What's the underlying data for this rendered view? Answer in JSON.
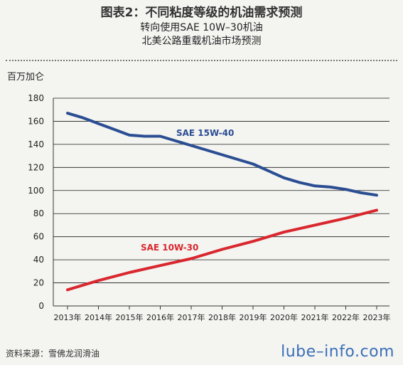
{
  "header": {
    "title": "图表2：不同粘度等级的机油需求预测",
    "subtitle_1": "转向使用SAE 10W–30机油",
    "subtitle_2": "北美公路重载机油市场预测"
  },
  "footer": {
    "source": "资料来源：雪佛龙润滑油",
    "brand": "lube–info.com"
  },
  "colors": {
    "sae15w40": "#2b4e93",
    "sae10w30": "#d9272e",
    "axis": "#333333",
    "grid": "#1a1a1a"
  },
  "chart_data": {
    "type": "line",
    "ylabel": "百万加仑",
    "ylim": [
      0,
      180
    ],
    "yticks": [
      0,
      20,
      40,
      60,
      80,
      100,
      120,
      140,
      160,
      180
    ],
    "categories": [
      "2013年",
      "2014年",
      "2015年",
      "2016年",
      "2017年",
      "2018年",
      "2019年",
      "2020年",
      "2021年",
      "2022年",
      "2023年"
    ],
    "grid": true,
    "series": [
      {
        "name": "SAE 15W-40",
        "x": [
          2013,
          2013.5,
          2014,
          2014.5,
          2015,
          2015.5,
          2016,
          2016.5,
          2017,
          2017.5,
          2018,
          2018.5,
          2019,
          2019.5,
          2020,
          2020.5,
          2021,
          2021.5,
          2022,
          2022.5,
          2023
        ],
        "values": [
          167,
          163,
          158,
          153,
          148,
          147,
          147,
          143,
          139,
          135,
          131,
          127,
          123,
          117,
          111,
          107,
          104,
          103,
          101,
          98,
          96
        ]
      },
      {
        "name": "SAE 10W-30",
        "x": [
          2013,
          2014,
          2015,
          2016,
          2017,
          2018,
          2019,
          2020,
          2021,
          2022,
          2023
        ],
        "values": [
          14,
          22,
          29,
          35,
          41,
          49,
          56,
          64,
          70,
          76,
          83
        ]
      }
    ]
  }
}
